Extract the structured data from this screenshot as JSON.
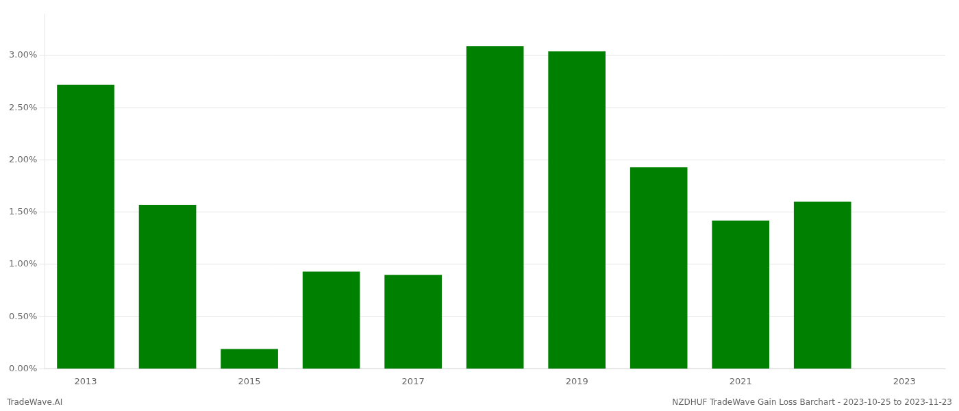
{
  "chart_data": {
    "type": "bar",
    "categories": [
      "2013",
      null,
      "2015",
      null,
      "2017",
      null,
      "2019",
      null,
      "2021",
      null,
      "2023"
    ],
    "values": [
      0.0272,
      0.0157,
      0.0019,
      0.0093,
      0.009,
      0.0309,
      0.0304,
      0.0193,
      0.0142,
      0.016,
      null
    ],
    "color": "#008000",
    "ylim": [
      0.0,
      0.034
    ],
    "yticks": [
      {
        "value": 0.0,
        "label": "0.00%"
      },
      {
        "value": 0.005,
        "label": "0.50%"
      },
      {
        "value": 0.01,
        "label": "1.00%"
      },
      {
        "value": 0.015,
        "label": "1.50%"
      },
      {
        "value": 0.02,
        "label": "2.00%"
      },
      {
        "value": 0.025,
        "label": "2.50%"
      },
      {
        "value": 0.03,
        "label": "3.00%"
      }
    ],
    "grid": true,
    "annotations": [
      "TradeWave.AI",
      "NZDHUF TradeWave Gain Loss Barchart - 2023-10-25 to 2023-11-23"
    ]
  }
}
